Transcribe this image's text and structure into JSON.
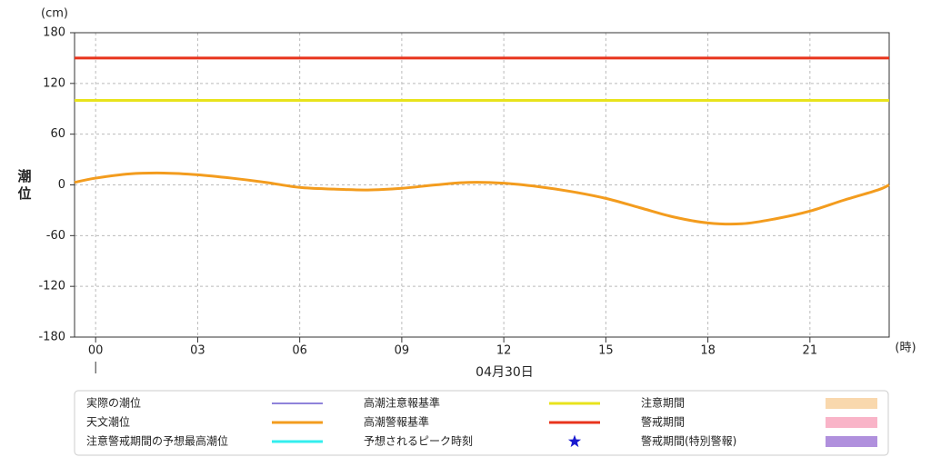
{
  "chart_data": {
    "type": "line",
    "y_label": "潮位",
    "y_unit": "(cm)",
    "x_unit": "(時)",
    "date_label": "04月30日",
    "x": [
      -0.62,
      0,
      1,
      2,
      3,
      4,
      5,
      6,
      7,
      8,
      9,
      10,
      11,
      12,
      13,
      14,
      15,
      16,
      17,
      18,
      19,
      20,
      21,
      22,
      23,
      23.33
    ],
    "series": [
      {
        "color": "#f39c1e",
        "values": [
          3,
          8,
          13,
          14,
          12,
          8,
          3,
          -3,
          -5,
          -6,
          -4,
          0,
          3,
          2,
          -2,
          -8,
          -16,
          -27,
          -38,
          -45,
          -46,
          -40,
          -31,
          -18,
          -6,
          0
        ]
      }
    ],
    "thresholds": [
      {
        "value": 100,
        "color": "#e8e31c"
      },
      {
        "value": 150,
        "color": "#e8341c"
      }
    ],
    "xlim": [
      -0.62,
      23.33
    ],
    "ylim": [
      -180,
      180
    ],
    "xticks": [
      {
        "value": 0,
        "label": "00"
      },
      {
        "value": 3,
        "label": "03"
      },
      {
        "value": 6,
        "label": "06"
      },
      {
        "value": 9,
        "label": "09"
      },
      {
        "value": 12,
        "label": "12"
      },
      {
        "value": 15,
        "label": "15"
      },
      {
        "value": 18,
        "label": "18"
      },
      {
        "value": 21,
        "label": "21"
      }
    ],
    "yticks": [
      180,
      120,
      60,
      0,
      -60,
      -120,
      -180
    ],
    "grid": true,
    "legend": {
      "columns": 3,
      "items": [
        {
          "name": "実際の潮位",
          "symbol": "thin-line",
          "color": "#6a5acd"
        },
        {
          "name": "天文潮位",
          "symbol": "line",
          "color": "#f39c1e"
        },
        {
          "name": "注意警戒期間の予想最高潮位",
          "symbol": "line",
          "color": "#33eeee"
        },
        {
          "name": "高潮注意報基準",
          "symbol": "line",
          "color": "#e8e31c"
        },
        {
          "name": "高潮警報基準",
          "symbol": "line",
          "color": "#e8341c"
        },
        {
          "name": "予想されるピーク時刻",
          "symbol": "star",
          "color": "#1a1acf"
        },
        {
          "name": "注意期間",
          "symbol": "rect",
          "color": "#f9d8ad"
        },
        {
          "name": "警戒期間",
          "symbol": "rect",
          "color": "#f9b4c8"
        },
        {
          "name": "警戒期間(特別警報)",
          "symbol": "rect",
          "color": "#b090dd"
        }
      ]
    }
  }
}
